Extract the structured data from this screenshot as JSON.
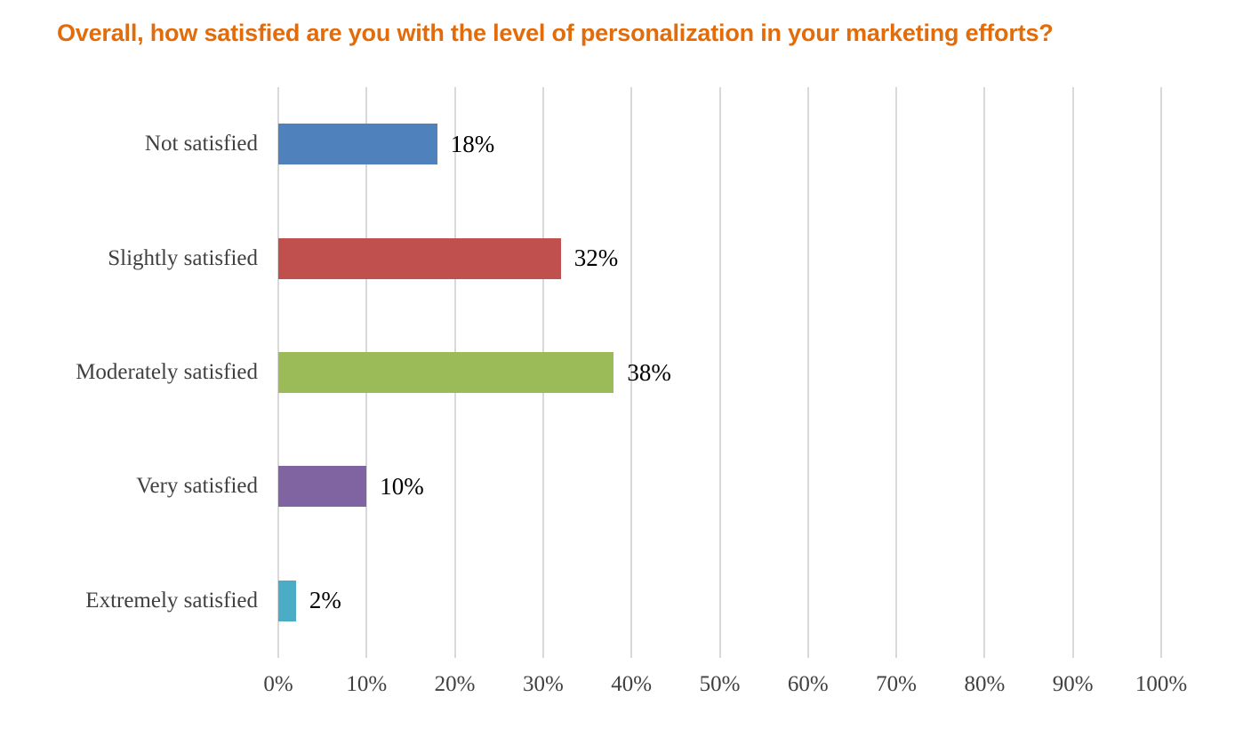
{
  "title": "Overall, how satisfied are you with the level of personalization in your marketing efforts?",
  "colors": {
    "title": "#E36C0A",
    "gridline": "#D9D9D9",
    "axis_text": "#404040",
    "category_text": "#404040",
    "value_text": "#000000",
    "background": "#FFFFFF"
  },
  "chart_data": {
    "type": "bar",
    "orientation": "horizontal",
    "title": "Overall, how satisfied are you with the level of personalization in your marketing efforts?",
    "categories": [
      "Not satisfied",
      "Slightly satisfied",
      "Moderately satisfied",
      "Very satisfied",
      "Extremely satisfied"
    ],
    "values": [
      18,
      32,
      38,
      10,
      2
    ],
    "value_labels": [
      "18%",
      "32%",
      "38%",
      "10%",
      "2%"
    ],
    "bar_colors": [
      "#4F81BD",
      "#C0504D",
      "#9BBB59",
      "#8064A2",
      "#4BACC6"
    ],
    "xlabel": "",
    "ylabel": "",
    "xlim": [
      0,
      100
    ],
    "x_tick_values": [
      0,
      10,
      20,
      30,
      40,
      50,
      60,
      70,
      80,
      90,
      100
    ],
    "x_ticks": [
      "0%",
      "10%",
      "20%",
      "30%",
      "40%",
      "50%",
      "60%",
      "70%",
      "80%",
      "90%",
      "100%"
    ],
    "grid": "vertical-only",
    "legend": "none"
  }
}
